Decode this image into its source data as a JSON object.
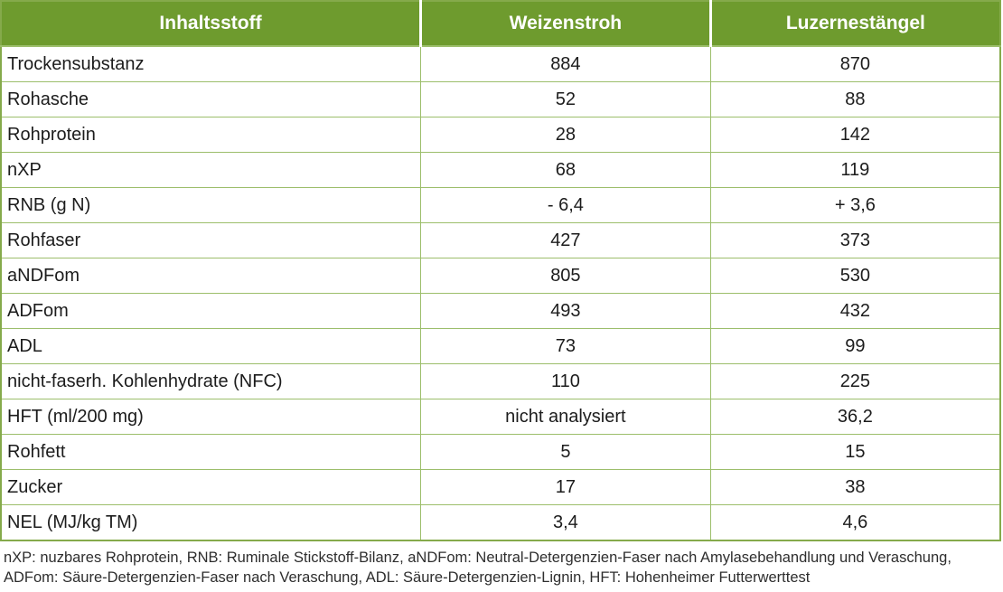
{
  "colors": {
    "header_bg": "#6e9b2e",
    "header_text": "#ffffff",
    "border_outer": "#85aa4b",
    "border_inner": "#9cbe6b",
    "body_text": "#1c1c1c",
    "footnote_text": "#2e2e2e"
  },
  "table": {
    "columns": [
      "Inhaltsstoff",
      "Weizenstroh",
      "Luzernestängel"
    ],
    "rows": [
      {
        "label": "Trockensubstanz",
        "weizenstroh": "884",
        "luzernestaengel": "870"
      },
      {
        "label": "Rohasche",
        "weizenstroh": "52",
        "luzernestaengel": "88"
      },
      {
        "label": "Rohprotein",
        "weizenstroh": "28",
        "luzernestaengel": "142"
      },
      {
        "label": "nXP",
        "weizenstroh": "68",
        "luzernestaengel": "119"
      },
      {
        "label": "RNB (g N)",
        "weizenstroh": "- 6,4",
        "luzernestaengel": "+ 3,6"
      },
      {
        "label": "Rohfaser",
        "weizenstroh": "427",
        "luzernestaengel": "373"
      },
      {
        "label": "aNDFom",
        "weizenstroh": "805",
        "luzernestaengel": "530"
      },
      {
        "label": "ADFom",
        "weizenstroh": "493",
        "luzernestaengel": "432"
      },
      {
        "label": "ADL",
        "weizenstroh": "73",
        "luzernestaengel": "99"
      },
      {
        "label": "nicht-faserh. Kohlenhydrate (NFC)",
        "weizenstroh": "110",
        "luzernestaengel": "225"
      },
      {
        "label": "HFT (ml/200 mg)",
        "weizenstroh": "nicht analysiert",
        "luzernestaengel": "36,2"
      },
      {
        "label": "Rohfett",
        "weizenstroh": "5",
        "luzernestaengel": "15"
      },
      {
        "label": "Zucker",
        "weizenstroh": "17",
        "luzernestaengel": "38"
      },
      {
        "label": "NEL (MJ/kg TM)",
        "weizenstroh": "3,4",
        "luzernestaengel": "4,6"
      }
    ]
  },
  "footnote": {
    "line1": "nXP: nuzbares Rohprotein, RNB: Ruminale Stickstoff-Bilanz, aNDFom: Neutral-Detergenzien-Faser nach Amylasebehandlung und Veraschung,",
    "line2": "ADFom: Säure-Detergenzien-Faser nach Veraschung, ADL: Säure-Detergenzien-Lignin, HFT: Hohenheimer Futterwerttest"
  }
}
